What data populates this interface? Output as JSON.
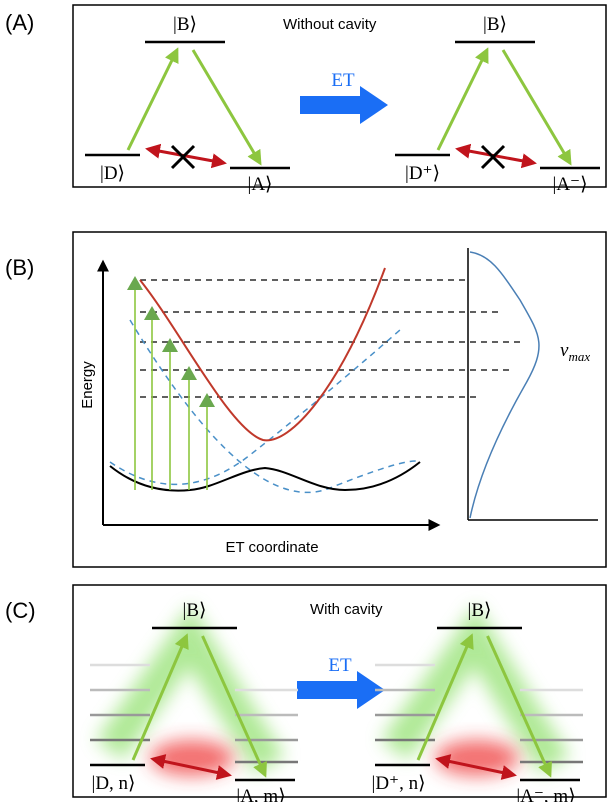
{
  "panels": [
    {
      "label": "(A)",
      "title": "Without cavity",
      "arrow_label": "ET",
      "states": [
        "|B⟩",
        "|D⟩",
        "|A⟩",
        "|B⟩",
        "|D⁺⟩",
        "|A⁻⟩"
      ]
    },
    {
      "label": "(B)",
      "y_axis": "Energy",
      "x_axis": "ET coordinate",
      "annotation": {
        "symbol": "ν",
        "subscript": "max"
      }
    },
    {
      "label": "(C)",
      "title": "With cavity",
      "arrow_label": "ET",
      "states": [
        "|B⟩",
        "|D, n⟩",
        "|A, m⟩",
        "|B⟩",
        "|D⁺, n⟩",
        "|A⁻, m⟩"
      ]
    }
  ]
}
